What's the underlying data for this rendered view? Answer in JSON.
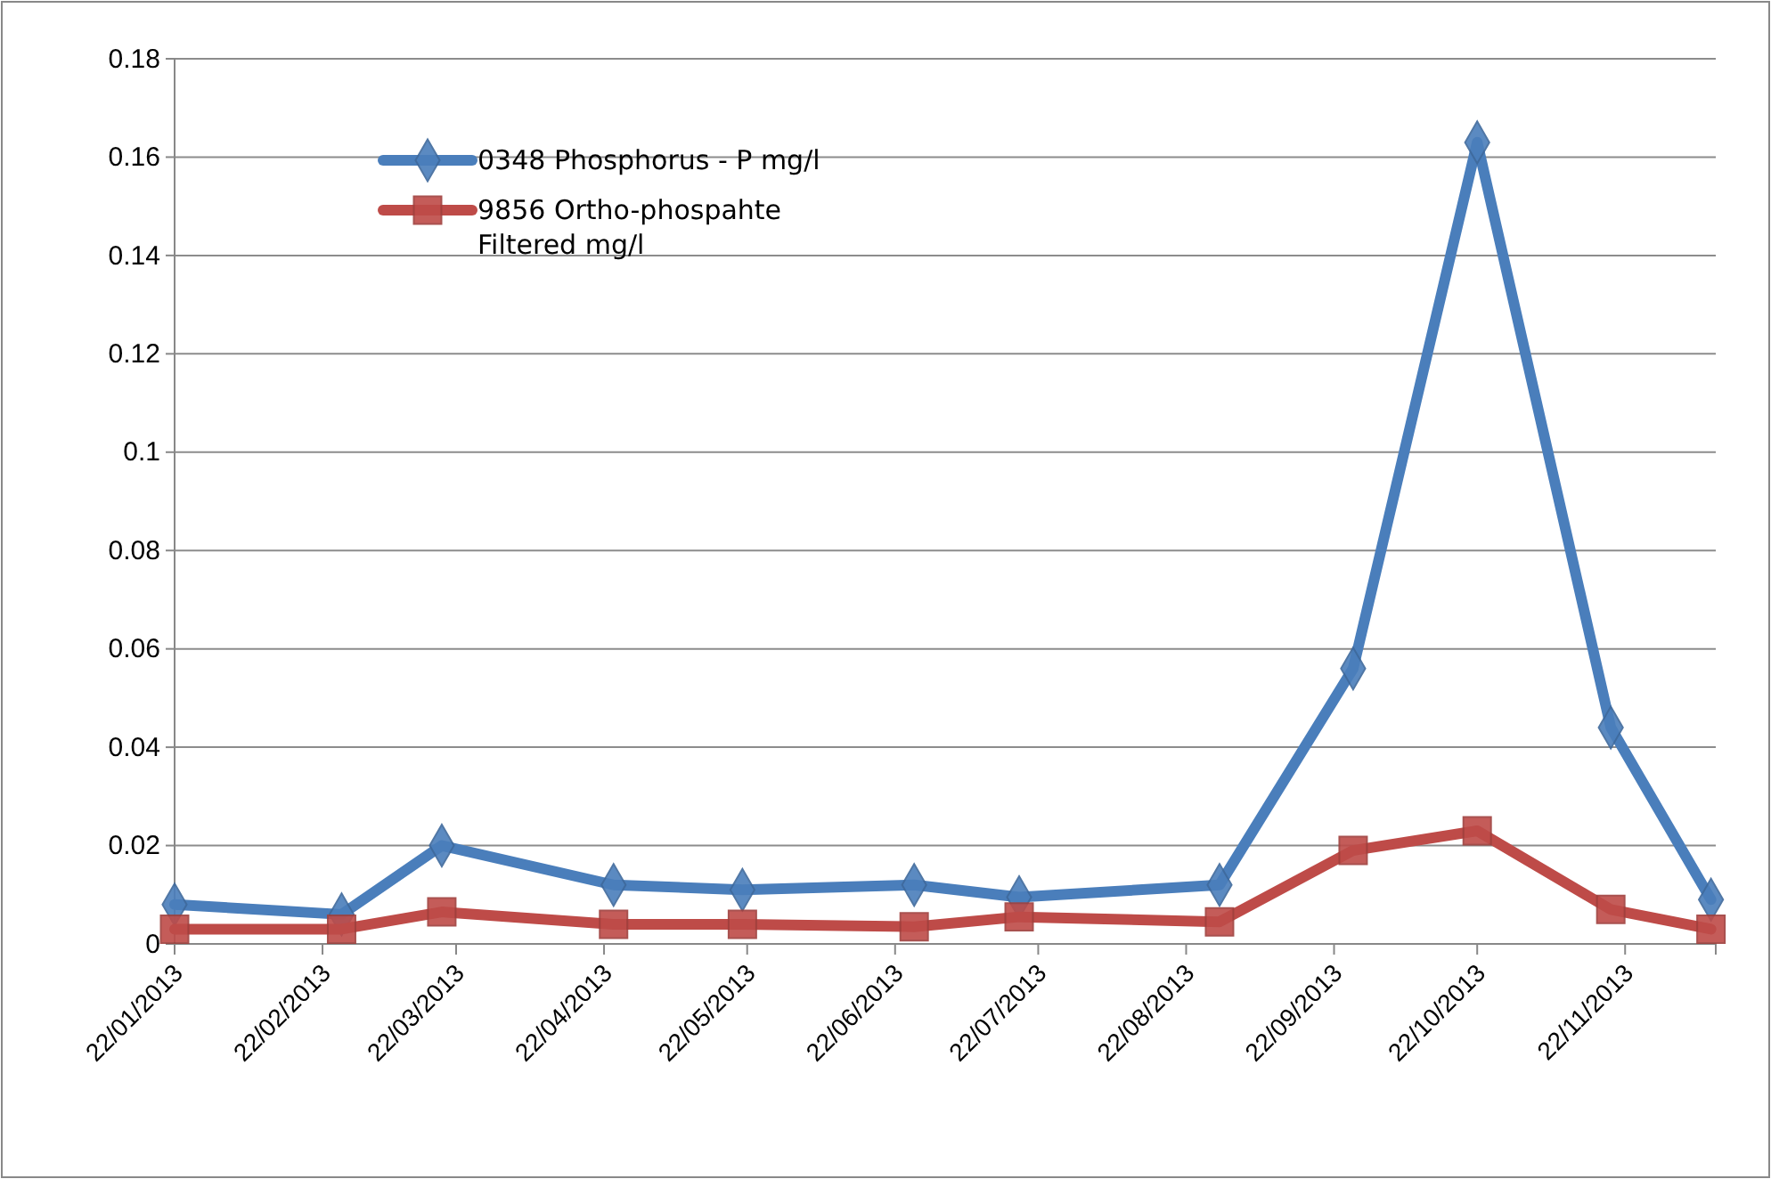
{
  "chart_data": {
    "type": "line",
    "x": [
      "2013-01-22",
      "2013-02-26",
      "2013-03-19",
      "2013-04-24",
      "2013-05-21",
      "2013-06-26",
      "2013-07-18",
      "2013-08-29",
      "2013-09-26",
      "2013-10-22",
      "2013-11-19",
      "2013-12-10"
    ],
    "series": [
      {
        "name": "0348 Phosphorus - P mg/l",
        "color": "#4a7ebb",
        "marker": "diamond",
        "values": [
          0.008,
          0.006,
          0.02,
          0.012,
          0.011,
          0.012,
          0.0095,
          0.012,
          0.056,
          0.163,
          0.044,
          0.009
        ]
      },
      {
        "name": "9856 Ortho-phospahte Filtered mg/l",
        "color": "#be4b48",
        "marker": "square",
        "values": [
          0.003,
          0.003,
          0.0065,
          0.004,
          0.004,
          0.0035,
          0.0055,
          0.0045,
          0.019,
          0.023,
          0.007,
          0.003
        ]
      }
    ],
    "xlim": [
      "2013-01-22",
      "2013-12-11"
    ],
    "xticks": [
      {
        "value": "2013-01-22",
        "label": "22/01/2013"
      },
      {
        "value": "2013-02-22",
        "label": "22/02/2013"
      },
      {
        "value": "2013-03-22",
        "label": "22/03/2013"
      },
      {
        "value": "2013-04-22",
        "label": "22/04/2013"
      },
      {
        "value": "2013-05-22",
        "label": "22/05/2013"
      },
      {
        "value": "2013-06-22",
        "label": "22/06/2013"
      },
      {
        "value": "2013-07-22",
        "label": "22/07/2013"
      },
      {
        "value": "2013-08-22",
        "label": "22/08/2013"
      },
      {
        "value": "2013-09-22",
        "label": "22/09/2013"
      },
      {
        "value": "2013-10-22",
        "label": "22/10/2013"
      },
      {
        "value": "2013-11-22",
        "label": "22/11/2013"
      }
    ],
    "ylim": [
      0,
      0.18
    ],
    "yticks": [
      0,
      0.02,
      0.04,
      0.06,
      0.08,
      0.1,
      0.12,
      0.14,
      0.16,
      0.18
    ],
    "grid": "y",
    "legend": "top left",
    "line_style": "solid"
  }
}
